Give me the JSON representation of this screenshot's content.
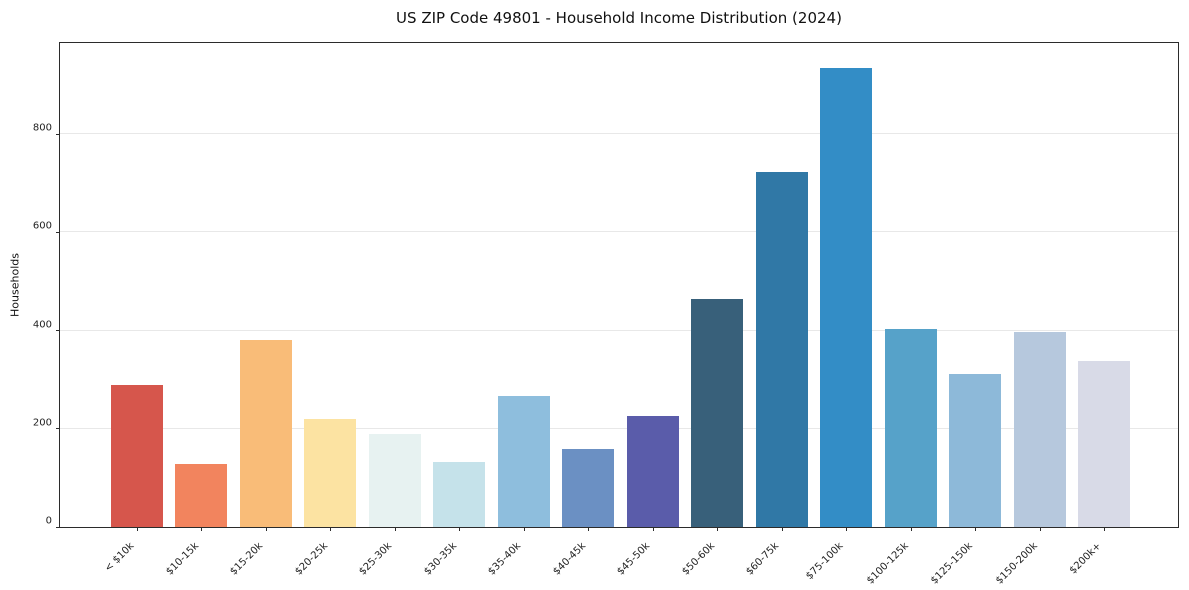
{
  "title": "US ZIP Code 49801 - Household Income Distribution (2024)",
  "chart_data": {
    "type": "bar",
    "title": "US ZIP Code 49801 - Household Income Distribution (2024)",
    "xlabel": "",
    "ylabel": "Households",
    "categories": [
      "< $10k",
      "$10-15k",
      "$15-20k",
      "$20-25k",
      "$25-30k",
      "$30-35k",
      "$35-40k",
      "$40-45k",
      "$45-50k",
      "$50-60k",
      "$60-75k",
      "$75-100k",
      "$100-125k",
      "$125-150k",
      "$150-200k",
      "$200k+"
    ],
    "values": [
      290,
      129,
      380,
      221,
      190,
      133,
      266,
      158,
      227,
      464,
      724,
      935,
      403,
      311,
      397,
      338
    ],
    "bar_colors": [
      "#d6564c",
      "#f2845e",
      "#f9bc78",
      "#fce3a2",
      "#e7f2f1",
      "#c5e2ea",
      "#8ebedd",
      "#6b90c3",
      "#5a5caa",
      "#38607a",
      "#3078a6",
      "#338dc6",
      "#56a2c9",
      "#8db9d9",
      "#b6c8dd",
      "#d8dae7"
    ],
    "yticks": [
      0,
      200,
      400,
      600,
      800
    ],
    "ylim": [
      0,
      990
    ],
    "grid": "horizontal-only",
    "grid_color": "#e8e8e8",
    "frame_color": "#2b2b2b",
    "background": "#ffffff",
    "legend": "none",
    "x_tick_rotation_deg": 45
  }
}
